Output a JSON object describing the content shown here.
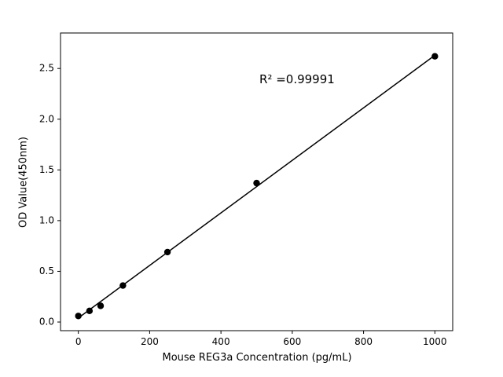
{
  "figure": {
    "background": "#ffffff"
  },
  "chart_data": {
    "type": "scatter",
    "title": "",
    "xlabel": "Mouse REG3a Concentration (pg/mL)",
    "ylabel": "OD Value(450nm)",
    "x": [
      0,
      31.25,
      62.5,
      125,
      250,
      500,
      1000
    ],
    "y": [
      0.06,
      0.11,
      0.16,
      0.36,
      0.69,
      1.37,
      2.62
    ],
    "trendline": {
      "x": [
        0,
        1000
      ],
      "y": [
        0.04,
        2.63
      ]
    },
    "r_squared_label": "R² =0.99991",
    "xlim": [
      -50,
      1050
    ],
    "ylim": [
      -0.085,
      2.85
    ],
    "xticks": [
      0,
      200,
      400,
      600,
      800,
      1000
    ],
    "yticks": [
      0.0,
      0.5,
      1.0,
      1.5,
      2.0,
      2.5
    ],
    "marker_color": "#000000",
    "line_color": "#000000",
    "axis_color": "#000000",
    "grid": false,
    "legend": null
  }
}
